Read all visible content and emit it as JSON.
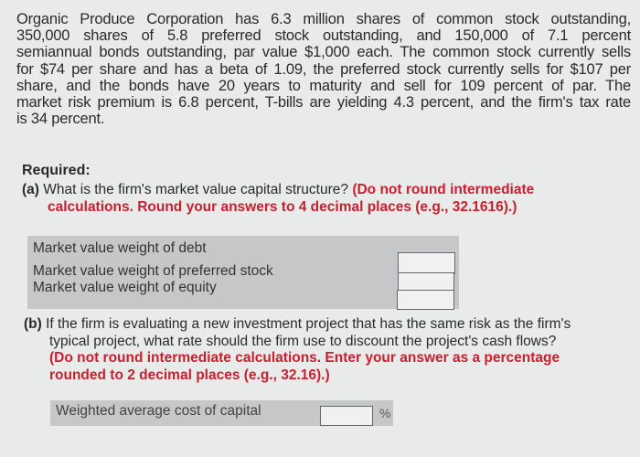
{
  "problem": {
    "lines": [
      "Organic Produce Corporation has 6.3 million shares of common stock outstanding,",
      "350,000 shares of 5.8 preferred stock outstanding, and 150,000 of 7.1 percent",
      "semiannual bonds outstanding, par value $1,000 each. The common stock currently sells",
      "for $74 per share and has a beta of 1.09, the preferred stock currently sells for $107 per",
      "share, and the bonds have 20 years to maturity and sell for 109 percent of par. The",
      "market risk premium is 6.8 percent, T-bills are yielding 4.3 percent, and the firm's tax rate",
      "is 34 percent."
    ]
  },
  "required_label": "Required:",
  "part_a": {
    "letter": "(a)",
    "question": "What is the firm's market value capital structure?",
    "instruction_1": "(Do not round intermediate",
    "instruction_2": "calculations. Round your answers to 4 decimal places (e.g., 32.1616).)",
    "rows": [
      {
        "label": "Market value weight of debt",
        "value": ""
      },
      {
        "label": "Market value weight of preferred stock",
        "value": ""
      },
      {
        "label": "Market value weight of equity",
        "value": ""
      }
    ]
  },
  "part_b": {
    "letter": "(b)",
    "line1": "If the firm is evaluating a new investment project that has the same risk as the firm's",
    "line2": "typical project, what rate should the firm use to discount the project's cash flows?",
    "instruction_1": "(Do not round intermediate calculations. Enter your answer as a percentage",
    "instruction_2": "rounded to 2 decimal places (e.g., 32.16).)",
    "row_label": "Weighted average cost of capital",
    "value": "",
    "unit": "%"
  },
  "colors": {
    "instruction_red": "#c8202f",
    "table_gray": "#c6c7c8"
  }
}
